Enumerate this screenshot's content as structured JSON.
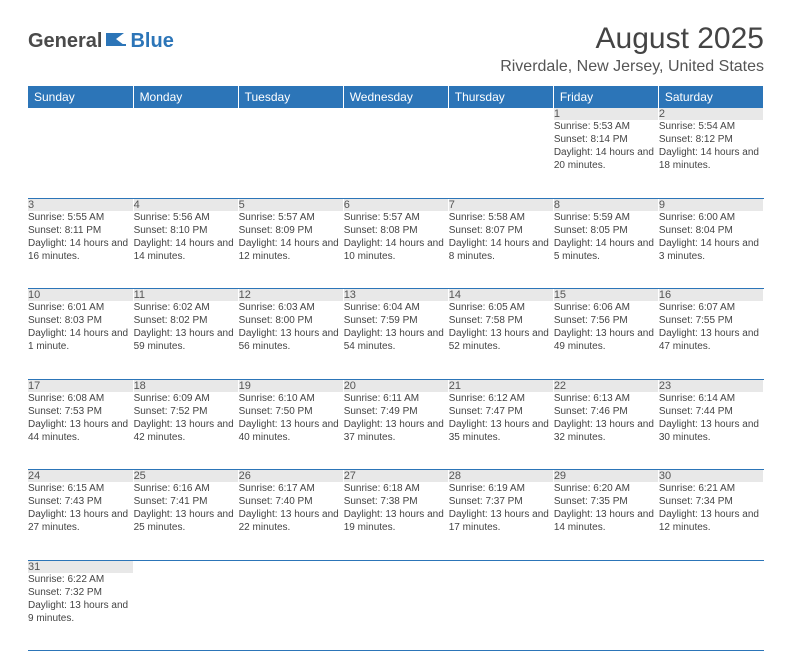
{
  "logo": {
    "text1": "General",
    "text2": "Blue"
  },
  "title": "August 2025",
  "location": "Riverdale, New Jersey, United States",
  "colors": {
    "header_bg": "#2c75b8",
    "header_text": "#ffffff",
    "daynum_bg": "#e8e8e8",
    "border": "#2c75b8",
    "text": "#444444"
  },
  "dayHeaders": [
    "Sunday",
    "Monday",
    "Tuesday",
    "Wednesday",
    "Thursday",
    "Friday",
    "Saturday"
  ],
  "weeks": [
    [
      null,
      null,
      null,
      null,
      null,
      {
        "n": "1",
        "sr": "5:53 AM",
        "ss": "8:14 PM",
        "dl": "14 hours and 20 minutes."
      },
      {
        "n": "2",
        "sr": "5:54 AM",
        "ss": "8:12 PM",
        "dl": "14 hours and 18 minutes."
      }
    ],
    [
      {
        "n": "3",
        "sr": "5:55 AM",
        "ss": "8:11 PM",
        "dl": "14 hours and 16 minutes."
      },
      {
        "n": "4",
        "sr": "5:56 AM",
        "ss": "8:10 PM",
        "dl": "14 hours and 14 minutes."
      },
      {
        "n": "5",
        "sr": "5:57 AM",
        "ss": "8:09 PM",
        "dl": "14 hours and 12 minutes."
      },
      {
        "n": "6",
        "sr": "5:57 AM",
        "ss": "8:08 PM",
        "dl": "14 hours and 10 minutes."
      },
      {
        "n": "7",
        "sr": "5:58 AM",
        "ss": "8:07 PM",
        "dl": "14 hours and 8 minutes."
      },
      {
        "n": "8",
        "sr": "5:59 AM",
        "ss": "8:05 PM",
        "dl": "14 hours and 5 minutes."
      },
      {
        "n": "9",
        "sr": "6:00 AM",
        "ss": "8:04 PM",
        "dl": "14 hours and 3 minutes."
      }
    ],
    [
      {
        "n": "10",
        "sr": "6:01 AM",
        "ss": "8:03 PM",
        "dl": "14 hours and 1 minute."
      },
      {
        "n": "11",
        "sr": "6:02 AM",
        "ss": "8:02 PM",
        "dl": "13 hours and 59 minutes."
      },
      {
        "n": "12",
        "sr": "6:03 AM",
        "ss": "8:00 PM",
        "dl": "13 hours and 56 minutes."
      },
      {
        "n": "13",
        "sr": "6:04 AM",
        "ss": "7:59 PM",
        "dl": "13 hours and 54 minutes."
      },
      {
        "n": "14",
        "sr": "6:05 AM",
        "ss": "7:58 PM",
        "dl": "13 hours and 52 minutes."
      },
      {
        "n": "15",
        "sr": "6:06 AM",
        "ss": "7:56 PM",
        "dl": "13 hours and 49 minutes."
      },
      {
        "n": "16",
        "sr": "6:07 AM",
        "ss": "7:55 PM",
        "dl": "13 hours and 47 minutes."
      }
    ],
    [
      {
        "n": "17",
        "sr": "6:08 AM",
        "ss": "7:53 PM",
        "dl": "13 hours and 44 minutes."
      },
      {
        "n": "18",
        "sr": "6:09 AM",
        "ss": "7:52 PM",
        "dl": "13 hours and 42 minutes."
      },
      {
        "n": "19",
        "sr": "6:10 AM",
        "ss": "7:50 PM",
        "dl": "13 hours and 40 minutes."
      },
      {
        "n": "20",
        "sr": "6:11 AM",
        "ss": "7:49 PM",
        "dl": "13 hours and 37 minutes."
      },
      {
        "n": "21",
        "sr": "6:12 AM",
        "ss": "7:47 PM",
        "dl": "13 hours and 35 minutes."
      },
      {
        "n": "22",
        "sr": "6:13 AM",
        "ss": "7:46 PM",
        "dl": "13 hours and 32 minutes."
      },
      {
        "n": "23",
        "sr": "6:14 AM",
        "ss": "7:44 PM",
        "dl": "13 hours and 30 minutes."
      }
    ],
    [
      {
        "n": "24",
        "sr": "6:15 AM",
        "ss": "7:43 PM",
        "dl": "13 hours and 27 minutes."
      },
      {
        "n": "25",
        "sr": "6:16 AM",
        "ss": "7:41 PM",
        "dl": "13 hours and 25 minutes."
      },
      {
        "n": "26",
        "sr": "6:17 AM",
        "ss": "7:40 PM",
        "dl": "13 hours and 22 minutes."
      },
      {
        "n": "27",
        "sr": "6:18 AM",
        "ss": "7:38 PM",
        "dl": "13 hours and 19 minutes."
      },
      {
        "n": "28",
        "sr": "6:19 AM",
        "ss": "7:37 PM",
        "dl": "13 hours and 17 minutes."
      },
      {
        "n": "29",
        "sr": "6:20 AM",
        "ss": "7:35 PM",
        "dl": "13 hours and 14 minutes."
      },
      {
        "n": "30",
        "sr": "6:21 AM",
        "ss": "7:34 PM",
        "dl": "13 hours and 12 minutes."
      }
    ],
    [
      {
        "n": "31",
        "sr": "6:22 AM",
        "ss": "7:32 PM",
        "dl": "13 hours and 9 minutes."
      },
      null,
      null,
      null,
      null,
      null,
      null
    ]
  ],
  "labels": {
    "sunrise": "Sunrise:",
    "sunset": "Sunset:",
    "daylight": "Daylight:"
  }
}
